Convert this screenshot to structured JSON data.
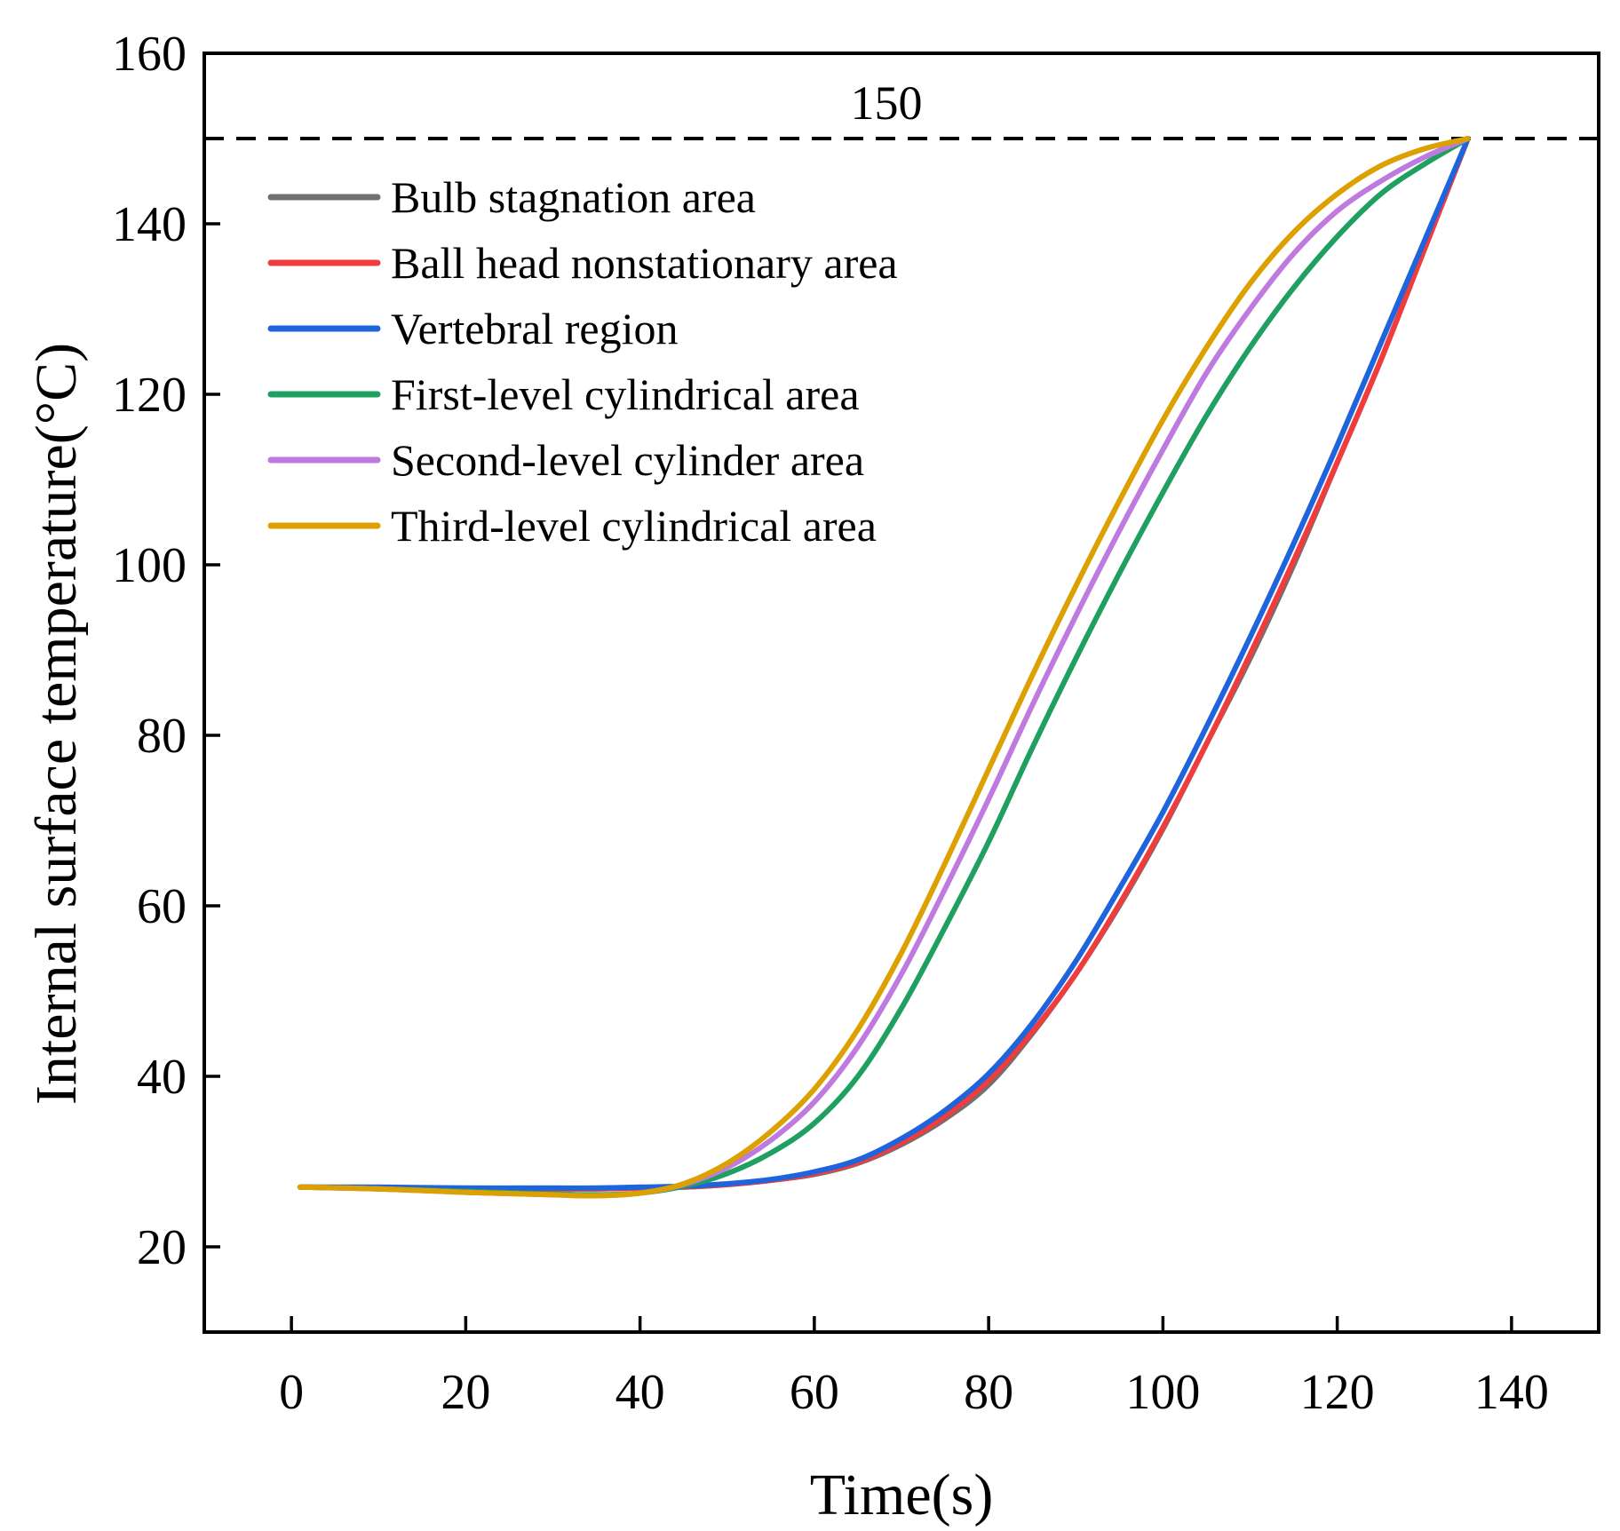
{
  "chart_data": {
    "type": "line",
    "title": "",
    "xlabel": "Time(s)",
    "ylabel": "Internal surface temperature(°C)",
    "xlim": [
      -10,
      150
    ],
    "ylim": [
      10,
      160
    ],
    "xticks": [
      0,
      20,
      40,
      60,
      80,
      100,
      120,
      140
    ],
    "yticks": [
      20,
      40,
      60,
      80,
      100,
      120,
      140,
      160
    ],
    "grid": false,
    "legend_position": "top-left",
    "reference_line": {
      "y": 150,
      "label": "150",
      "style": "dashed",
      "color": "#000000"
    },
    "x": [
      1,
      10,
      20,
      30,
      35,
      40,
      45,
      50,
      55,
      60,
      65,
      70,
      75,
      80,
      85,
      90,
      95,
      100,
      105,
      110,
      115,
      120,
      125,
      130,
      135
    ],
    "series": [
      {
        "name": "Bulb stagnation area",
        "color": "#707070",
        "values": [
          27,
          26.9,
          26.8,
          26.8,
          26.8,
          26.9,
          27,
          27.3,
          27.8,
          28.5,
          29.8,
          32,
          35,
          39,
          45,
          52,
          60,
          69,
          79,
          89,
          100,
          112,
          124,
          137,
          150
        ]
      },
      {
        "name": "Ball head nonstationary area",
        "color": "#f03c3c",
        "values": [
          27,
          26.9,
          26.8,
          26.8,
          26.8,
          26.9,
          27,
          27.3,
          27.8,
          28.6,
          29.9,
          32.2,
          35.3,
          39.5,
          45.2,
          52,
          60.2,
          69.2,
          79,
          89.5,
          100.5,
          112,
          124,
          137,
          150
        ]
      },
      {
        "name": "Vertebral region",
        "color": "#1e64dc",
        "values": [
          27,
          27,
          26.9,
          26.9,
          26.9,
          27,
          27.1,
          27.4,
          27.9,
          28.8,
          30.2,
          32.7,
          36,
          40.3,
          46.2,
          53.5,
          62,
          71,
          81,
          91.5,
          102.5,
          114,
          126,
          138,
          150
        ]
      },
      {
        "name": "First-level cylindrical area",
        "color": "#1fa060",
        "values": [
          27,
          26.8,
          26.5,
          26.2,
          26.1,
          26.3,
          27.1,
          28.6,
          31,
          34.5,
          40,
          48,
          57.5,
          67.5,
          78.5,
          89,
          99,
          108.5,
          117.5,
          125.5,
          132.5,
          138.5,
          143.5,
          147,
          150
        ]
      },
      {
        "name": "Second-level cylinder area",
        "color": "#bf7ae0",
        "values": [
          27,
          26.8,
          26.4,
          26.1,
          26,
          26.3,
          27.3,
          29.3,
          32.5,
          37,
          43.5,
          52,
          62,
          72.5,
          83.5,
          94,
          104,
          113.5,
          122.5,
          130,
          136.5,
          141.5,
          145,
          147.8,
          150
        ]
      },
      {
        "name": "Third-level cylindrical area",
        "color": "#dca000",
        "values": [
          27,
          26.8,
          26.4,
          26.1,
          26,
          26.3,
          27.4,
          29.8,
          33.5,
          38.5,
          45.5,
          54.5,
          65,
          76,
          87,
          97.5,
          107.5,
          117,
          125.5,
          133,
          139,
          143.5,
          146.8,
          148.8,
          150
        ]
      }
    ]
  }
}
